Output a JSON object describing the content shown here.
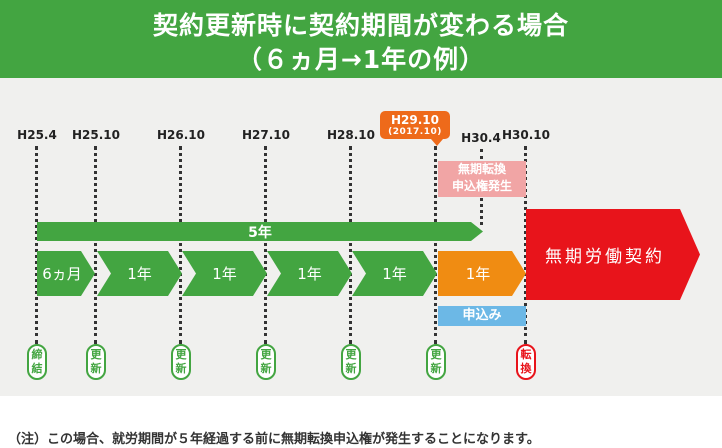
{
  "title": {
    "line1": "契約更新時に契約期間が変わる場合",
    "line2": "（６ヵ月→1年の例）"
  },
  "timeline": {
    "labels": [
      "H25.4",
      "H25.10",
      "H26.10",
      "H27.10",
      "H28.10",
      "H30.4",
      "H30.10"
    ],
    "callout_main": "H29.10",
    "callout_sub": "(2017.10)"
  },
  "muki_box": [
    "無期転換",
    "申込権発生"
  ],
  "five_year_label": "5年",
  "segments": [
    "6ヵ月",
    "1年",
    "1年",
    "1年",
    "1年",
    "1年"
  ],
  "muki_contract": "無期労働契約",
  "apply_label": "申込み",
  "badges": [
    [
      "締",
      "結"
    ],
    [
      "更",
      "新"
    ],
    [
      "更",
      "新"
    ],
    [
      "更",
      "新"
    ],
    [
      "更",
      "新"
    ],
    [
      "更",
      "新"
    ],
    [
      "転",
      "換"
    ]
  ],
  "note": "（注）この場合、就労期間が５年経過する前に無期転換申込権が発生することになります。",
  "colors": {
    "green": "#43a541",
    "orange": "#f08c12",
    "red": "#e8141b",
    "pink": "#f1a5a5",
    "blue": "#6cb8e6",
    "callout": "#ee6a1a",
    "background": "#f0f0ee"
  }
}
